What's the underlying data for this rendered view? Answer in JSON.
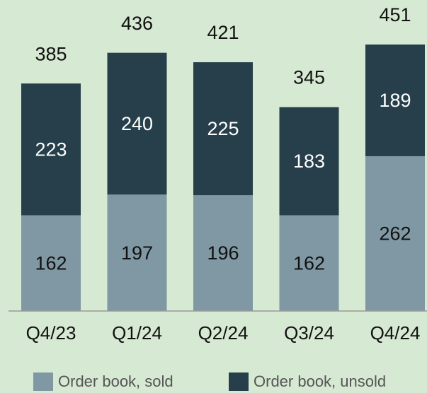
{
  "chart_data": {
    "type": "stacked_bar",
    "categories": [
      "Q4/23",
      "Q1/24",
      "Q2/24",
      "Q3/24",
      "Q4/24"
    ],
    "series": [
      {
        "name": "Order book, sold",
        "color": "#7f98a3",
        "label_color": "#111111",
        "values": [
          162,
          197,
          196,
          162,
          262
        ]
      },
      {
        "name": "Order book, unsold",
        "color": "#263f4a",
        "label_color": "#ffffff",
        "values": [
          223,
          240,
          225,
          183,
          189
        ]
      }
    ],
    "totals": [
      385,
      436,
      421,
      345,
      451
    ],
    "legend": "bottom"
  }
}
